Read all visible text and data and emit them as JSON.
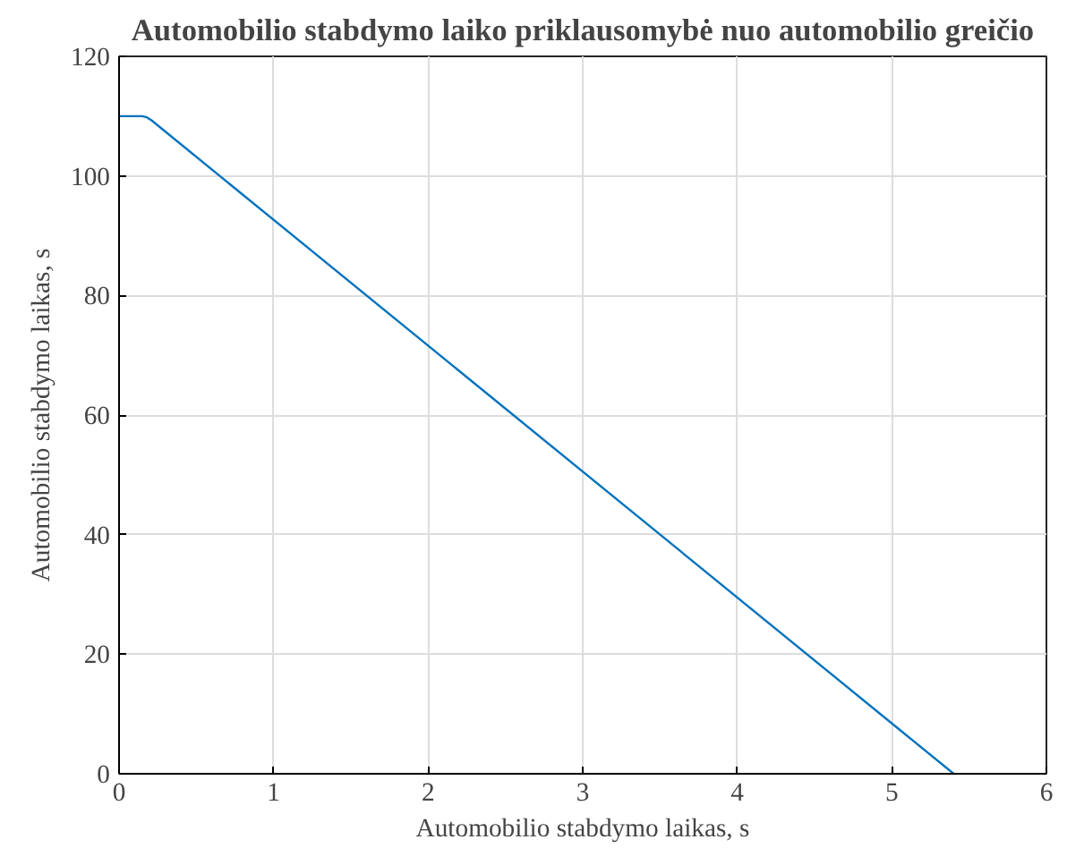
{
  "chart_data": {
    "type": "line",
    "title": "Automobilio stabdymo laiko priklausomybė nuo automobilio greičio",
    "xlabel": "Automobilio stabdymo laikas, s",
    "ylabel": "Automobilio stabdymo laikas, s",
    "x": [
      0,
      0.15,
      0.18,
      0.21,
      5.4
    ],
    "series": [
      {
        "color": "#0072bd",
        "values": [
          110,
          110,
          109.8,
          109.3,
          0
        ]
      }
    ],
    "xlim": [
      0,
      6
    ],
    "ylim": [
      0,
      120
    ],
    "xticks": [
      0,
      1,
      2,
      3,
      4,
      5,
      6
    ],
    "yticks": [
      0,
      20,
      40,
      60,
      80,
      100,
      120
    ],
    "grid": true,
    "marker": "none",
    "line_style": "solid"
  }
}
